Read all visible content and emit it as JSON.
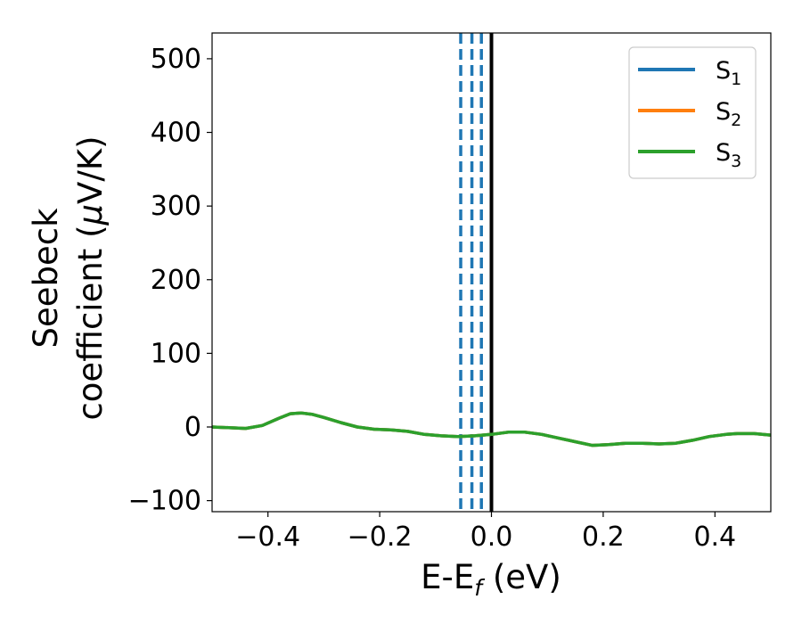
{
  "chart_data": {
    "type": "line",
    "xlabel": "E-E",
    "xlabel_sub": "f",
    "xlabel_unit": "(eV)",
    "ylabel_line1": "Seebeck",
    "ylabel_line2_prefix": "coefficient  (",
    "ylabel_mu": "μ",
    "ylabel_line2_suffix": "V/K)",
    "xlim": [
      -0.5,
      0.5
    ],
    "ylim": [
      -115,
      535
    ],
    "xticks": [
      -0.4,
      -0.2,
      0.0,
      0.2,
      0.4
    ],
    "xtick_labels": [
      "−0.4",
      "−0.2",
      "0.0",
      "0.2",
      "0.4"
    ],
    "yticks": [
      -100,
      0,
      100,
      200,
      300,
      400,
      500
    ],
    "ytick_labels": [
      "−100",
      "0",
      "100",
      "200",
      "300",
      "400",
      "500"
    ],
    "legend_position": "top-right",
    "legend": [
      {
        "base": "S",
        "sub": "1",
        "color": "#1f77b4"
      },
      {
        "base": "S",
        "sub": "2",
        "color": "#ff7f0e"
      },
      {
        "base": "S",
        "sub": "3",
        "color": "#2ca02c"
      }
    ],
    "x": [
      -0.5,
      -0.47,
      -0.44,
      -0.41,
      -0.38,
      -0.36,
      -0.34,
      -0.32,
      -0.3,
      -0.27,
      -0.24,
      -0.21,
      -0.18,
      -0.15,
      -0.12,
      -0.09,
      -0.06,
      -0.03,
      0.0,
      0.03,
      0.06,
      0.09,
      0.12,
      0.15,
      0.18,
      0.21,
      0.24,
      0.27,
      0.3,
      0.33,
      0.36,
      0.39,
      0.42,
      0.44,
      0.47,
      0.5
    ],
    "series": [
      {
        "color": "#1f77b4",
        "values": [
          0,
          -1,
          -2,
          2,
          12,
          18,
          19,
          17,
          13,
          6,
          0,
          -3,
          -4,
          -6,
          -10,
          -12,
          -13,
          -12,
          -10,
          -7,
          -7,
          -10,
          -15,
          -20,
          -25,
          -24,
          -22,
          -22,
          -23,
          -22,
          -18,
          -13,
          -10,
          -9,
          -9,
          -11
        ]
      },
      {
        "color": "#ff7f0e",
        "values": [
          0,
          -1,
          -2,
          2,
          12,
          18,
          19,
          17,
          13,
          6,
          0,
          -3,
          -4,
          -6,
          -10,
          -12,
          -13,
          -12,
          -10,
          -7,
          -7,
          -10,
          -15,
          -20,
          -25,
          -24,
          -22,
          -22,
          -23,
          -22,
          -18,
          -13,
          -10,
          -9,
          -9,
          -11
        ]
      },
      {
        "color": "#2ca02c",
        "values": [
          0,
          -1,
          -2,
          2,
          12,
          18,
          19,
          17,
          13,
          6,
          0,
          -3,
          -4,
          -6,
          -10,
          -12,
          -13,
          -12,
          -10,
          -7,
          -7,
          -10,
          -15,
          -20,
          -25,
          -24,
          -22,
          -22,
          -23,
          -22,
          -18,
          -13,
          -10,
          -9,
          -9,
          -11
        ]
      }
    ],
    "vlines_dashed": {
      "x": [
        -0.055,
        -0.035,
        -0.018
      ],
      "color": "#1f77b4"
    },
    "vline_solid": {
      "x": 0.0,
      "color": "#000000"
    }
  }
}
